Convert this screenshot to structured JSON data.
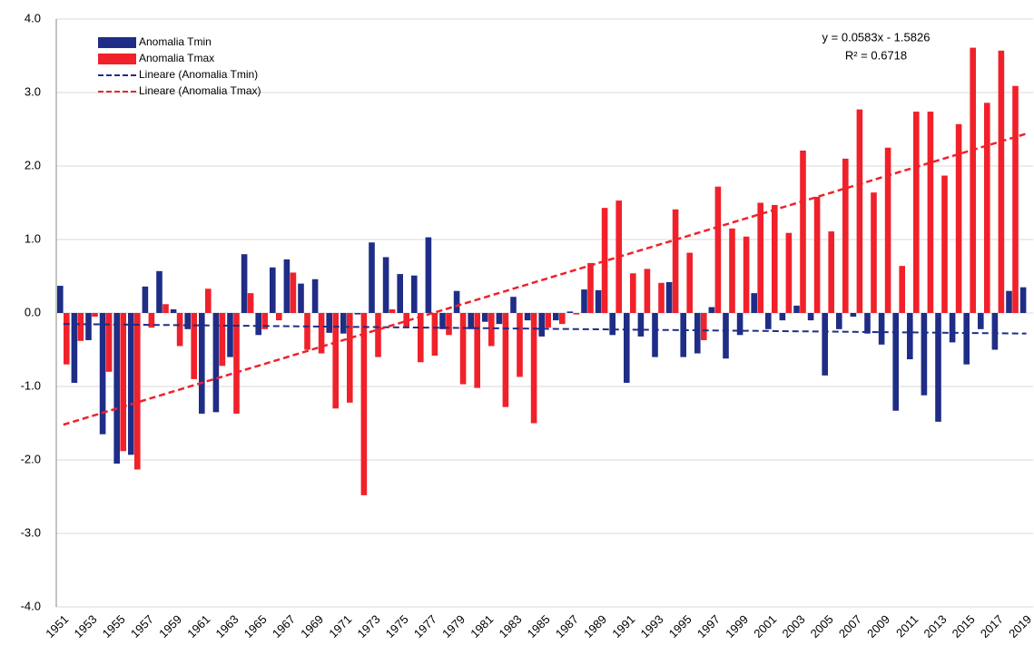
{
  "chart_data": {
    "type": "bar",
    "categories": [
      "1951",
      null,
      "1953",
      null,
      "1955",
      null,
      "1957",
      null,
      "1959",
      null,
      "1961",
      null,
      "1963",
      null,
      "1965",
      null,
      "1967",
      null,
      "1969",
      null,
      "1971",
      null,
      "1973",
      null,
      "1975",
      null,
      "1977",
      null,
      "1979",
      null,
      "1981",
      null,
      "1983",
      null,
      "1985",
      null,
      "1987",
      null,
      "1989",
      null,
      "1991",
      null,
      "1993",
      null,
      "1995",
      null,
      "1997",
      null,
      "1999",
      null,
      "2001",
      null,
      "2003",
      null,
      "2005",
      null,
      "2007",
      null,
      "2009",
      null,
      "2011",
      null,
      "2013",
      null,
      "2015",
      null,
      "2017",
      null,
      "2019"
    ],
    "series": [
      {
        "name": "Anomalia Tmin",
        "color": "#1f2d86",
        "values": [
          0.37,
          -0.95,
          -0.37,
          -1.65,
          -2.05,
          -1.93,
          0.36,
          0.57,
          0.05,
          -0.22,
          -1.37,
          -1.35,
          -0.6,
          0.8,
          -0.3,
          0.62,
          0.73,
          0.4,
          0.46,
          -0.27,
          -0.28,
          -0.02,
          0.96,
          0.76,
          0.53,
          0.51,
          1.03,
          -0.22,
          0.3,
          -0.22,
          -0.12,
          -0.15,
          0.22,
          -0.1,
          -0.32,
          -0.1,
          0.02,
          0.32,
          0.31,
          -0.3,
          -0.95,
          -0.32,
          -0.6,
          0.42,
          -0.6,
          -0.55,
          0.08,
          -0.62,
          -0.3,
          0.27,
          -0.22,
          -0.1,
          0.1,
          -0.1,
          -0.85,
          -0.22,
          -0.05,
          -0.28,
          -0.43,
          -1.33,
          -0.63,
          -1.12,
          -1.48,
          -0.4,
          -0.7,
          -0.22,
          -0.5,
          0.3,
          0.35
        ]
      },
      {
        "name": "Anomalia Tmax",
        "color": "#f0212a",
        "values": [
          -0.7,
          -0.38,
          -0.05,
          -0.8,
          -1.88,
          -2.13,
          -0.2,
          0.12,
          -0.45,
          -0.9,
          0.33,
          -0.72,
          -1.37,
          0.27,
          -0.22,
          -0.1,
          0.55,
          -0.5,
          -0.55,
          -1.3,
          -1.22,
          -2.48,
          -0.6,
          0.05,
          -0.2,
          -0.67,
          -0.58,
          -0.3,
          -0.97,
          -1.02,
          -0.45,
          -1.28,
          -0.87,
          -1.5,
          -0.2,
          -0.15,
          -0.02,
          0.68,
          1.43,
          1.53,
          0.54,
          0.6,
          0.41,
          1.41,
          0.82,
          -0.37,
          1.72,
          1.15,
          1.04,
          1.5,
          1.47,
          1.09,
          2.21,
          1.58,
          1.11,
          2.1,
          2.77,
          1.64,
          2.25,
          0.64,
          2.74,
          2.74,
          1.87,
          2.57,
          3.61,
          2.86,
          3.57,
          3.09,
          null
        ]
      },
      {
        "name": "Lineare (Anomalia Tmin)",
        "type": "line",
        "color": "#1f2d86",
        "x": [
          1951,
          2019
        ],
        "values": [
          -0.15,
          -0.28
        ]
      },
      {
        "name": "Lineare (Anomalia Tmax)",
        "type": "line",
        "color": "#f0212a",
        "x": [
          1951,
          2019
        ],
        "values": [
          -1.52,
          2.44
        ]
      }
    ],
    "annotations": [
      "y = 0.0583x - 1.5826",
      "R² = 0.6718"
    ],
    "ylim": [
      -4,
      4
    ],
    "yticks": [
      {
        "value": -4,
        "label": "-4.0"
      },
      {
        "value": -3,
        "label": "-3.0"
      },
      {
        "value": -2,
        "label": "-2.0"
      },
      {
        "value": -1,
        "label": "-1.0"
      },
      {
        "value": 0,
        "label": "0.0"
      },
      {
        "value": 1,
        "label": "1.0"
      },
      {
        "value": 2,
        "label": "2.0"
      },
      {
        "value": 3,
        "label": "3.0"
      },
      {
        "value": 4,
        "label": "4.0"
      }
    ],
    "xlim": [
      1951,
      2019
    ],
    "grid": true,
    "legend": "upper left"
  }
}
